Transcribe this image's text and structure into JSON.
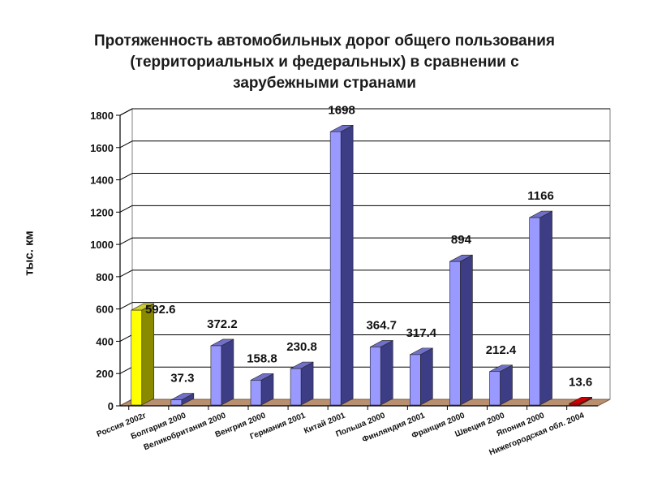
{
  "chart_data": {
    "type": "bar",
    "title_lines": [
      "Протяженность автомобильных дорог общего пользования",
      "(территориальных и федеральных) в сравнении с",
      "зарубежными странами"
    ],
    "ylabel": "тыс. км",
    "xlabel": "",
    "ylim": [
      0,
      1800
    ],
    "yticks": [
      0,
      200,
      400,
      600,
      800,
      1000,
      1200,
      1400,
      1600,
      1800
    ],
    "categories": [
      "Россия 2002г",
      "Болгария 2000",
      "Великобритания 2000",
      "Венгрия 2000",
      "Германия 2001",
      "Китай 2001",
      "Польша 2000",
      "Финляндия 2001",
      "Франция 2000",
      "Швеция 2000",
      "Япония 2000",
      "Нижегородская обл. 2004"
    ],
    "values": [
      592.6,
      37.3,
      372.2,
      158.8,
      230.8,
      1698,
      364.7,
      317.4,
      894,
      212.4,
      1166,
      13.6
    ],
    "value_labels": [
      "592.6",
      "37.3",
      "372.2",
      "158.8",
      "230.8",
      "1698",
      "364.7",
      "317.4",
      "894",
      "212.4",
      "1166",
      "13.6"
    ],
    "grid": true,
    "colors": {
      "default_front": "#9999ff",
      "default_side": "#3d3d85",
      "default_top": "#7070c8",
      "highlight_front": "#ffff00",
      "highlight_side": "#8a8a00",
      "highlight_top": "#cccc33",
      "regional_front": "#cc0000",
      "regional_side": "#800000",
      "floor": "#b89070"
    },
    "highlight_index": 0,
    "regional_index": 11
  }
}
